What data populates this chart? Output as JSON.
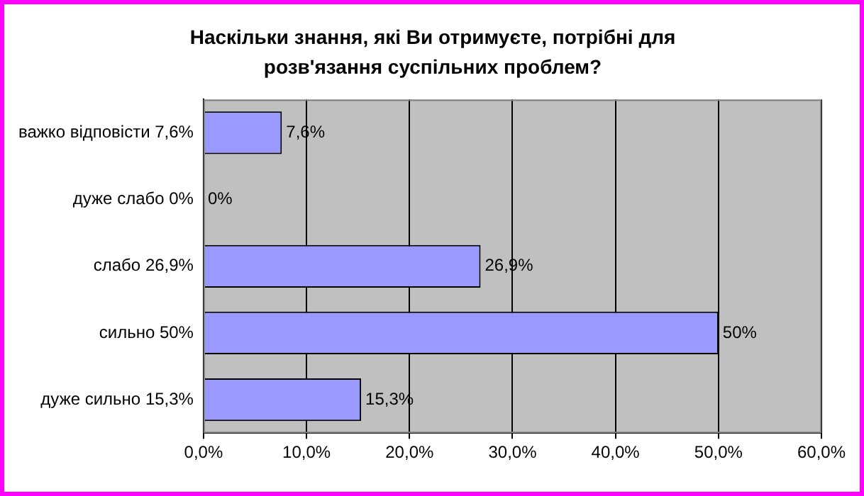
{
  "chart_data": {
    "type": "bar",
    "orientation": "horizontal",
    "title": "Наскільки знання, які Ви отримуєте, потрібні для розв'язання суспільних проблем?",
    "categories": [
      "важко відповісти 7,6%",
      "дуже слабо 0%",
      "слабо 26,9%",
      "сильно 50%",
      "дуже сильно 15,3%"
    ],
    "values": [
      7.6,
      0,
      26.9,
      50,
      15.3
    ],
    "value_labels": [
      "7,6%",
      "0%",
      "26,9%",
      "50%",
      "15,3%"
    ],
    "color": "#9999ff",
    "xlim": [
      0,
      60
    ],
    "xticks": [
      {
        "value": 0,
        "label": "0,0%"
      },
      {
        "value": 10,
        "label": "10,0%"
      },
      {
        "value": 20,
        "label": "20,0%"
      },
      {
        "value": 30,
        "label": "30,0%"
      },
      {
        "value": 40,
        "label": "40,0%"
      },
      {
        "value": 50,
        "label": "50,0%"
      },
      {
        "value": 60,
        "label": "60,0%"
      }
    ],
    "grid": "x",
    "legend": false
  }
}
